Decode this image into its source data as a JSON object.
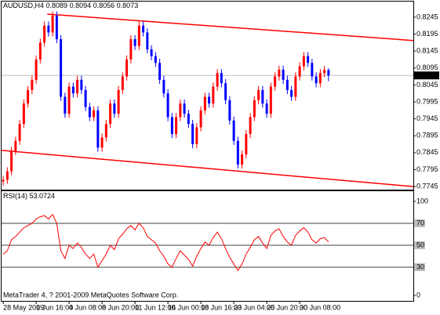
{
  "chart_data": [
    {
      "type": "candlestick",
      "title": "AUDUSD,H4",
      "open": [
        0.776,
        0.7765,
        0.779,
        0.785,
        0.788,
        0.793,
        0.799,
        0.803,
        0.806,
        0.812,
        0.817,
        0.822,
        0.82,
        0.825,
        0.818,
        0.801,
        0.796,
        0.804,
        0.802,
        0.806,
        0.803,
        0.798,
        0.795,
        0.797,
        0.786,
        0.789,
        0.793,
        0.799,
        0.796,
        0.803,
        0.807,
        0.812,
        0.818,
        0.816,
        0.822,
        0.82,
        0.815,
        0.813,
        0.811,
        0.806,
        0.802,
        0.795,
        0.79,
        0.795,
        0.799,
        0.796,
        0.793,
        0.787,
        0.792,
        0.797,
        0.801,
        0.799,
        0.804,
        0.808,
        0.805,
        0.8,
        0.794,
        0.788,
        0.781,
        0.784,
        0.79,
        0.795,
        0.8,
        0.803,
        0.799,
        0.796,
        0.804,
        0.807,
        0.809,
        0.806,
        0.803,
        0.801,
        0.807,
        0.81,
        0.813,
        0.811,
        0.807,
        0.805,
        0.808,
        0.8089
      ],
      "high": [
        0.7777,
        0.7802,
        0.7862,
        0.7892,
        0.7942,
        0.8002,
        0.8042,
        0.8072,
        0.8132,
        0.8182,
        0.8232,
        0.8232,
        0.8262,
        0.8262,
        0.8192,
        0.8022,
        0.8052,
        0.8052,
        0.8072,
        0.8072,
        0.8042,
        0.7992,
        0.7982,
        0.7982,
        0.7902,
        0.7942,
        0.8002,
        0.8002,
        0.8042,
        0.8082,
        0.8132,
        0.8192,
        0.8192,
        0.8232,
        0.8232,
        0.8212,
        0.8162,
        0.8142,
        0.8122,
        0.8072,
        0.8032,
        0.7962,
        0.7962,
        0.8002,
        0.8002,
        0.7972,
        0.7942,
        0.7932,
        0.7982,
        0.8022,
        0.8022,
        0.8052,
        0.8092,
        0.8092,
        0.8062,
        0.8012,
        0.7952,
        0.7892,
        0.7852,
        0.7912,
        0.7962,
        0.8012,
        0.8042,
        0.8042,
        0.8002,
        0.8052,
        0.8082,
        0.8102,
        0.8102,
        0.8072,
        0.8042,
        0.8082,
        0.8112,
        0.8142,
        0.8142,
        0.8122,
        0.8082,
        0.8092,
        0.8101,
        0.8094
      ],
      "low": [
        0.7748,
        0.7753,
        0.7778,
        0.7838,
        0.7868,
        0.7918,
        0.7978,
        0.8018,
        0.8048,
        0.8108,
        0.8158,
        0.8188,
        0.8188,
        0.8168,
        0.7998,
        0.7948,
        0.7948,
        0.8008,
        0.8008,
        0.8018,
        0.7968,
        0.7938,
        0.7938,
        0.7848,
        0.7848,
        0.7878,
        0.7918,
        0.7948,
        0.7948,
        0.8018,
        0.8058,
        0.8108,
        0.8148,
        0.8148,
        0.8188,
        0.8138,
        0.8118,
        0.8098,
        0.8048,
        0.8008,
        0.7938,
        0.7888,
        0.7888,
        0.7938,
        0.7948,
        0.7918,
        0.7858,
        0.7858,
        0.7908,
        0.7958,
        0.7978,
        0.7978,
        0.8028,
        0.8038,
        0.7988,
        0.7928,
        0.7868,
        0.7798,
        0.7798,
        0.7828,
        0.7888,
        0.7938,
        0.7988,
        0.7978,
        0.7948,
        0.7948,
        0.8028,
        0.8058,
        0.8048,
        0.8018,
        0.7998,
        0.7998,
        0.8058,
        0.8088,
        0.8098,
        0.8058,
        0.8038,
        0.8038,
        0.8068,
        0.8056
      ],
      "close": [
        0.7765,
        0.779,
        0.785,
        0.788,
        0.793,
        0.799,
        0.803,
        0.806,
        0.812,
        0.817,
        0.822,
        0.82,
        0.825,
        0.818,
        0.801,
        0.796,
        0.804,
        0.802,
        0.806,
        0.803,
        0.798,
        0.795,
        0.797,
        0.786,
        0.789,
        0.793,
        0.799,
        0.796,
        0.803,
        0.807,
        0.812,
        0.818,
        0.816,
        0.822,
        0.82,
        0.815,
        0.813,
        0.811,
        0.806,
        0.802,
        0.795,
        0.79,
        0.795,
        0.799,
        0.796,
        0.793,
        0.787,
        0.792,
        0.797,
        0.801,
        0.799,
        0.804,
        0.808,
        0.805,
        0.8,
        0.794,
        0.788,
        0.781,
        0.784,
        0.79,
        0.795,
        0.8,
        0.803,
        0.799,
        0.796,
        0.804,
        0.807,
        0.809,
        0.806,
        0.803,
        0.801,
        0.807,
        0.81,
        0.813,
        0.811,
        0.807,
        0.805,
        0.808,
        0.8089,
        0.8073
      ],
      "up_color": "#ff0000",
      "down_color": "#0000ff",
      "xlim": [
        -0.4,
        99.6
      ],
      "ylim": [
        0.7736,
        0.8291
      ],
      "yticks": [
        0.8245,
        0.8195,
        0.8145,
        0.8095,
        0.8045,
        0.7995,
        0.7945,
        0.7895,
        0.7845,
        0.7795,
        0.7745
      ],
      "xticks": [
        {
          "value": 0,
          "label": "28 May 2009"
        },
        {
          "value": 8,
          "label": "1 Jun 16:00"
        },
        {
          "value": 16,
          "label": "4 Jun 08:00"
        },
        {
          "value": 24,
          "label": "8 Jun 20:00"
        },
        {
          "value": 32,
          "label": "11 Jun 12:00"
        },
        {
          "value": 40,
          "label": "16 Jun 00:00"
        },
        {
          "value": 48,
          "label": "18 Jun 16:00"
        },
        {
          "value": 56,
          "label": "23 Jun 04:00"
        },
        {
          "value": 64,
          "label": "25 Jun 20:00"
        },
        {
          "value": 72,
          "label": "30 Jun 08:00"
        }
      ],
      "trendlines": [
        {
          "x": [
            10.7,
            99.6
          ],
          "y": [
            0.8254,
            0.8176
          ],
          "color": "#ff0000"
        },
        {
          "x": [
            -0.4,
            99.6
          ],
          "y": [
            0.7852,
            0.7745
          ],
          "color": "#ff0000"
        }
      ]
    },
    {
      "type": "line",
      "name": "RSI(14)",
      "color": "#ff0000",
      "values": [
        42,
        45,
        55,
        58,
        62,
        66,
        68,
        70,
        74,
        76,
        77,
        74,
        78,
        70,
        45,
        38,
        50,
        47,
        52,
        48,
        42,
        38,
        42,
        30,
        36,
        42,
        50,
        46,
        56,
        60,
        65,
        68,
        64,
        70,
        66,
        58,
        55,
        52,
        45,
        40,
        33,
        30,
        38,
        45,
        41,
        37,
        31,
        40,
        47,
        53,
        50,
        57,
        62,
        56,
        47,
        39,
        33,
        27,
        33,
        42,
        48,
        55,
        58,
        52,
        47,
        59,
        63,
        65,
        58,
        53,
        50,
        59,
        63,
        66,
        62,
        55,
        52,
        56,
        57,
        53.0724
      ],
      "ylim": [
        0,
        100
      ],
      "yticks": [
        100,
        70,
        50,
        30,
        0
      ]
    }
  ],
  "footer": "MetaTrader 4, ? 2001-2009 MetaQuotes Software Corp."
}
